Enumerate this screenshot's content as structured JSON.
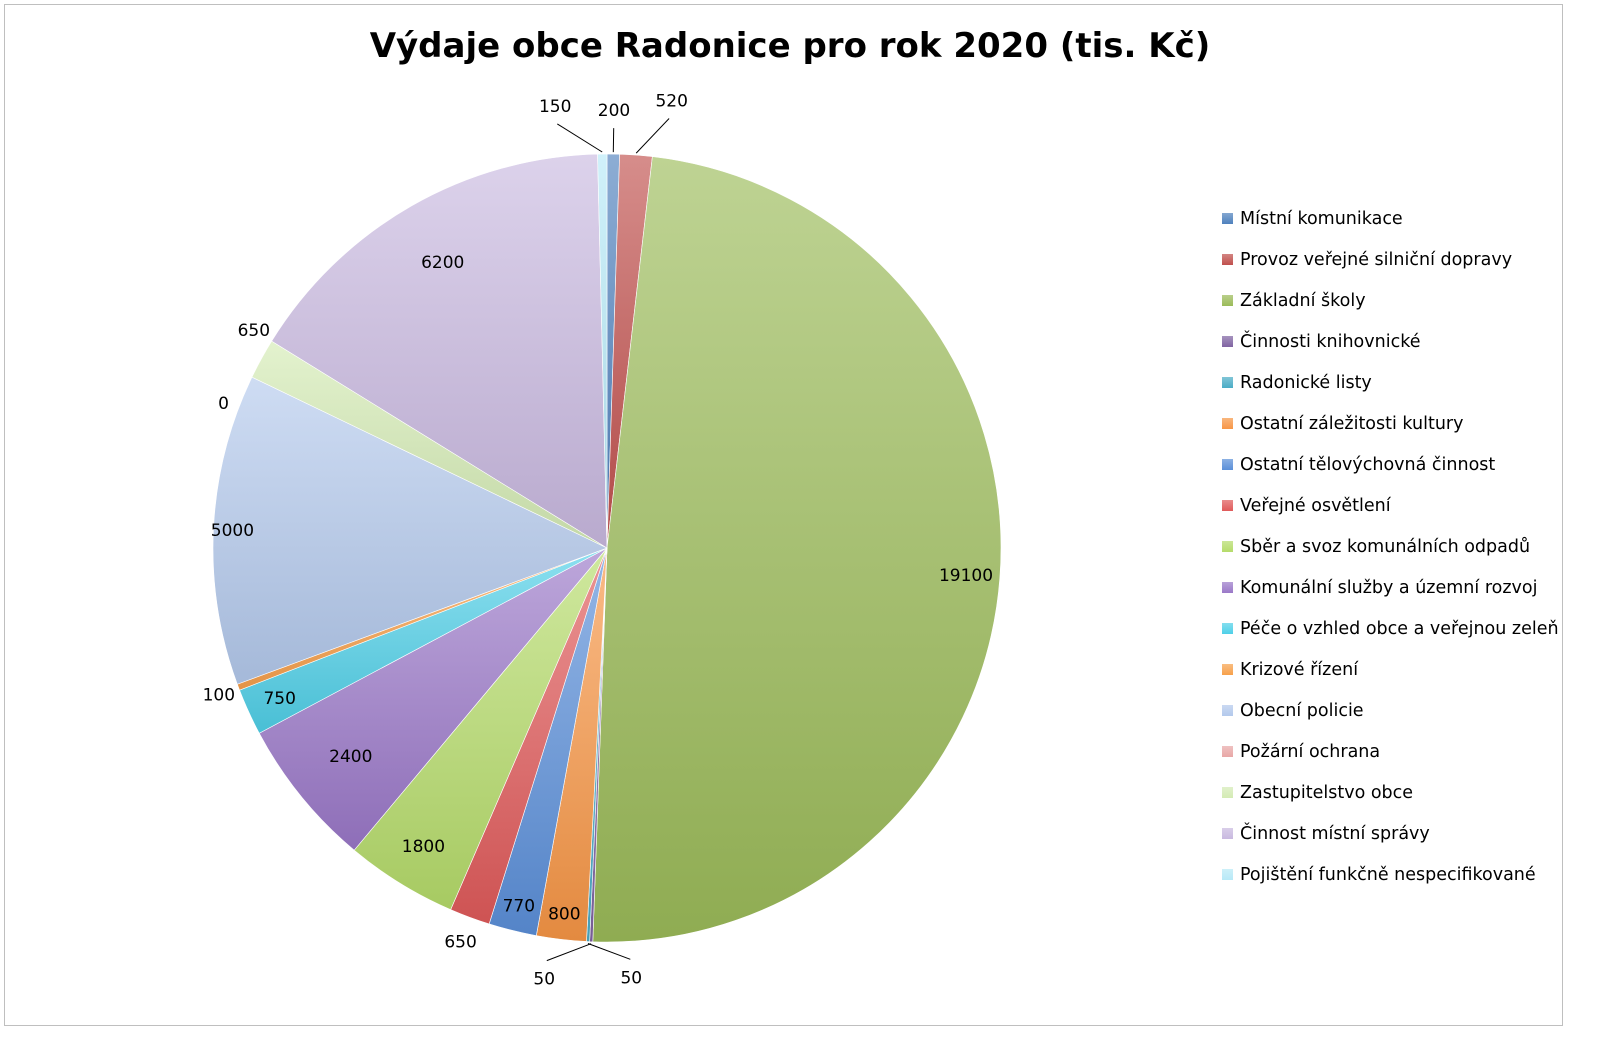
{
  "chart_data": {
    "type": "pie",
    "title": "Výdaje obce Radonice pro rok 2020 (tis. Kč)",
    "legend_position": "right",
    "slices": [
      {
        "label": "Místní komunikace",
        "value": 200,
        "value_label": "200",
        "color": "#4f81bd"
      },
      {
        "label": "Provoz veřejné silniční dopravy",
        "value": 520,
        "value_label": "520",
        "color": "#c0504d"
      },
      {
        "label": "Základní školy",
        "value": 19100,
        "value_label": "19100",
        "color": "#9bbb59"
      },
      {
        "label": "Činnosti knihovnické",
        "value": 50,
        "value_label": "50",
        "color": "#8064a2"
      },
      {
        "label": "Radonické listy",
        "value": 50,
        "value_label": "50",
        "color": "#4bacc6"
      },
      {
        "label": "Ostatní záležitosti kultury",
        "value": 800,
        "value_label": "800",
        "color": "#f79646"
      },
      {
        "label": "Ostatní tělovýchovná činnost",
        "value": 770,
        "value_label": "770",
        "color": "#5b8fd9"
      },
      {
        "label": "Veřejné osvětlení",
        "value": 650,
        "value_label": "650",
        "color": "#e05a5a"
      },
      {
        "label": "Sběr a svoz komunálních odpadů",
        "value": 1800,
        "value_label": "1800",
        "color": "#b5dc6a"
      },
      {
        "label": "Komunální služby a územní rozvoj",
        "value": 2400,
        "value_label": "2400",
        "color": "#9a78c8"
      },
      {
        "label": "Péče o vzhled obce a veřejnou zeleň",
        "value": 750,
        "value_label": "750",
        "color": "#4fd0e8"
      },
      {
        "label": "Krizové řízení",
        "value": 100,
        "value_label": "100",
        "color": "#f7a04b"
      },
      {
        "label": "Obecní policie",
        "value": 5000,
        "value_label": "5000",
        "color": "#b3c9ec"
      },
      {
        "label": "Požární ochrana",
        "value": 0,
        "value_label": "0",
        "color": "#e8a7a6"
      },
      {
        "label": "Zastupitelstvo obce",
        "value": 650,
        "value_label": "650",
        "color": "#d4ebb4"
      },
      {
        "label": "Činnost místní správy",
        "value": 6200,
        "value_label": "6200",
        "color": "#c9b9e0"
      },
      {
        "label": "Pojištění funkčně nespecifikované",
        "value": 150,
        "value_label": "150",
        "color": "#b7e9f7"
      }
    ]
  }
}
